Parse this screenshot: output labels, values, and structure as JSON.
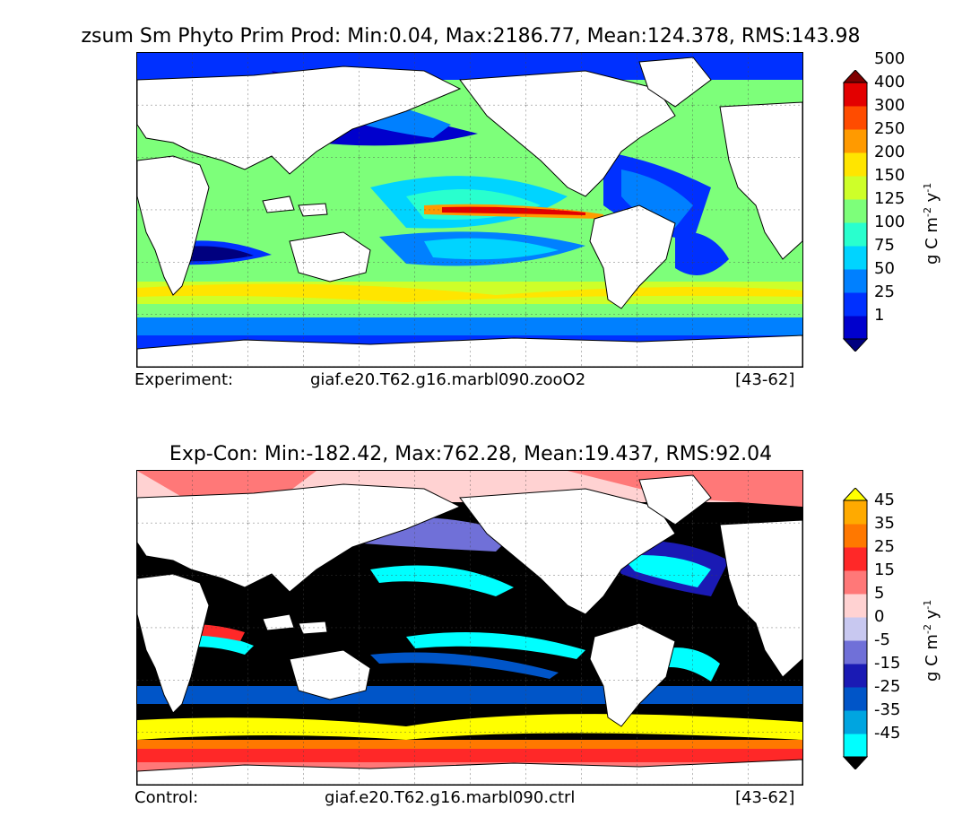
{
  "panels": [
    {
      "title": "zsum Sm Phyto Prim Prod: Min:0.04, Max:2186.77, Mean:124.378, RMS:143.98",
      "footer": {
        "label": "Experiment:",
        "case": "giaf.e20.T62.g16.marbl090.zooO2",
        "years": "[43-62]"
      },
      "colorbar": {
        "labels": [
          "1",
          "25",
          "50",
          "75",
          "100",
          "125",
          "150",
          "200",
          "250",
          "300",
          "400",
          "500"
        ],
        "colors": [
          "#00007f",
          "#0000cd",
          "#0030ff",
          "#0080ff",
          "#00d4ff",
          "#29ffce",
          "#7dff7a",
          "#ceff29",
          "#ffe500",
          "#ff9a00",
          "#ff4c00",
          "#e30000",
          "#7f0000"
        ],
        "unit_main": "g C m",
        "unit_exp1": "-2",
        "unit_mid": " y",
        "unit_exp2": "-1"
      }
    },
    {
      "title": "Exp-Con: Min:-182.42, Max:762.28, Mean:19.437, RMS:92.04",
      "footer": {
        "label": "Control:",
        "case": "giaf.e20.T62.g16.marbl090.ctrl",
        "years": "[43-62]"
      },
      "colorbar": {
        "labels": [
          "-45",
          "-35",
          "-25",
          "-15",
          "-5",
          "0",
          "5",
          "15",
          "25",
          "35",
          "45"
        ],
        "colors": [
          "#000000",
          "#00ffff",
          "#00a5e0",
          "#0055c8",
          "#1a1ab4",
          "#7070d8",
          "#c8c8f0",
          "#ffd2d2",
          "#ff7878",
          "#ff2828",
          "#ff7800",
          "#ffaa00",
          "#ffff00"
        ],
        "unit_main": "g C m",
        "unit_exp1": "-2",
        "unit_mid": " y",
        "unit_exp2": "-1"
      }
    }
  ]
}
